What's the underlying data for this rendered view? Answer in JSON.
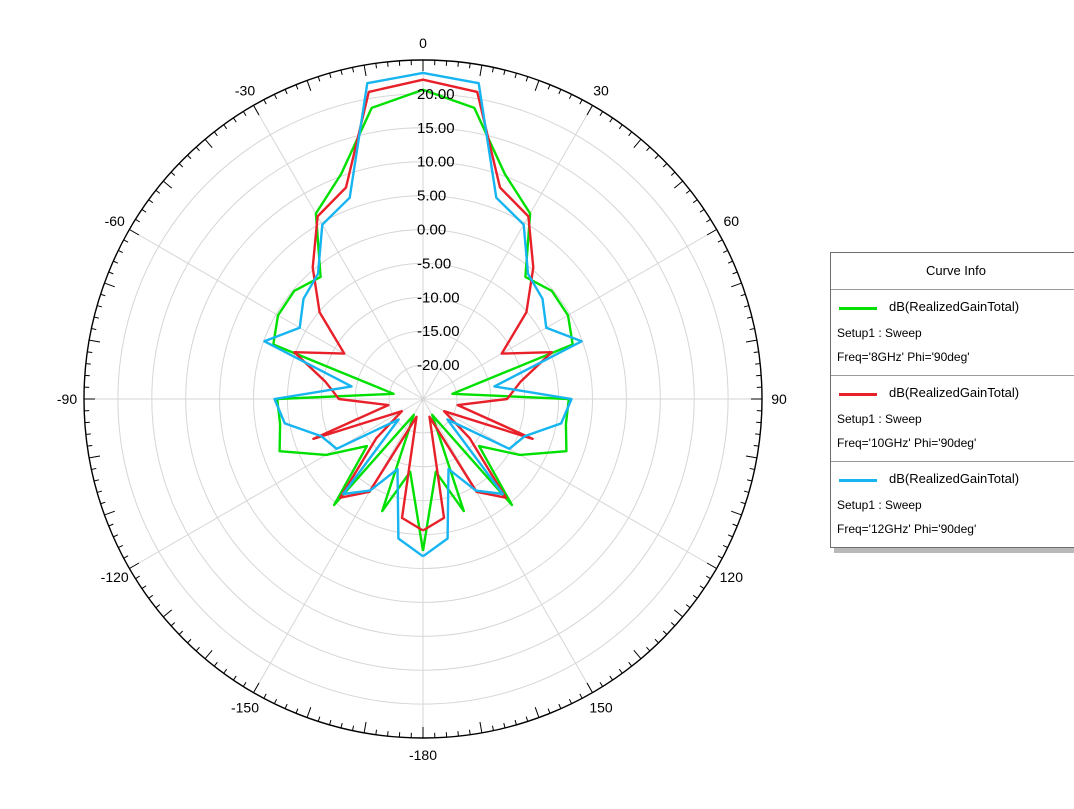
{
  "chart_data": {
    "type": "polar-line",
    "title": "",
    "radial_unit": "dB",
    "r_range": [
      -25,
      25
    ],
    "r_ticks": [
      "-20.00",
      "-15.00",
      "-10.00",
      "-5.00",
      "0.00",
      "5.00",
      "10.00",
      "15.00",
      "20.00"
    ],
    "r_tick_values": [
      -20,
      -15,
      -10,
      -5,
      0,
      5,
      10,
      15,
      20
    ],
    "angle_ticks": [
      {
        "value": 0,
        "label": "0"
      },
      {
        "value": 30,
        "label": "30"
      },
      {
        "value": 60,
        "label": "60"
      },
      {
        "value": 90,
        "label": "90"
      },
      {
        "value": 120,
        "label": "120"
      },
      {
        "value": 150,
        "label": "150"
      },
      {
        "value": 180,
        "label": "-180"
      },
      {
        "value": -150,
        "label": "-150"
      },
      {
        "value": -120,
        "label": "-120"
      },
      {
        "value": -90,
        "label": "-90"
      },
      {
        "value": -60,
        "label": "-60"
      },
      {
        "value": -30,
        "label": "-30"
      }
    ],
    "grid": true,
    "legend_position": "right",
    "angles": [
      -180,
      -170,
      -160,
      -150,
      -140,
      -130,
      -120,
      -110,
      -100,
      -90,
      -80,
      -70,
      -60,
      -50,
      -40,
      -30,
      -20,
      -10,
      0,
      10,
      20,
      30,
      40,
      50,
      60,
      70,
      80,
      90,
      100,
      110,
      120,
      130,
      140,
      150,
      160,
      170,
      180
    ],
    "series": [
      {
        "color": "#00e000",
        "values": [
          -2.6,
          -14.1,
          -7.4,
          -22.3,
          -4.6,
          -14.2,
          -8.5,
          -2.5,
          -3.6,
          -3.5,
          -20.6,
          -1.5,
          -0.3,
          -0.2,
          -1.5,
          6.6,
          10.3,
          18.6,
          20.6,
          18.6,
          10.3,
          6.6,
          -1.5,
          -0.2,
          -0.3,
          -1.5,
          -20.6,
          -3.5,
          -3.6,
          -2.5,
          -8.5,
          -14.2,
          -4.6,
          -22.3,
          -7.4,
          -14.1,
          -2.6
        ]
      },
      {
        "color": "#e8202a",
        "values": [
          -5.6,
          -7.2,
          -22.2,
          -9.2,
          -6.0,
          -16.0,
          -21.4,
          -7.8,
          -19.8,
          -12.6,
          -10.4,
          -4.8,
          -11.6,
          -5.1,
          0.3,
          6.1,
          8.2,
          21.0,
          22.1,
          21.0,
          8.2,
          6.1,
          0.3,
          -5.1,
          -11.6,
          -4.8,
          -10.4,
          -12.6,
          -19.8,
          -7.8,
          -21.4,
          -16.0,
          -6.0,
          -9.2,
          -22.2,
          -7.2,
          -5.6
        ]
      },
      {
        "color": "#16b4f0",
        "values": [
          -1.8,
          -4.1,
          -14.0,
          -9.4,
          -6.7,
          -20.3,
          -10.3,
          -9.0,
          -4.3,
          -3.1,
          -14.3,
          -0.1,
          -4.0,
          -2.0,
          -0.9,
          4.7,
          6.6,
          22.3,
          23.1,
          22.3,
          6.6,
          4.7,
          -0.9,
          -2.0,
          -4.0,
          -0.1,
          -14.3,
          -3.1,
          -4.3,
          -9.0,
          -10.3,
          -20.3,
          -6.7,
          -9.4,
          -14.0,
          -4.1,
          -1.8
        ]
      }
    ]
  },
  "legend": {
    "title": "Curve Info",
    "entries": [
      {
        "name": "dB(RealizedGainTotal)",
        "setup": "Setup1 : Sweep",
        "params": "Freq='8GHz' Phi='90deg'",
        "color": "#00e000"
      },
      {
        "name": "dB(RealizedGainTotal)",
        "setup": "Setup1 : Sweep",
        "params": "Freq='10GHz' Phi='90deg'",
        "color": "#e8202a"
      },
      {
        "name": "dB(RealizedGainTotal)",
        "setup": "Setup1 : Sweep",
        "params": "Freq='12GHz' Phi='90deg'",
        "color": "#16b4f0"
      }
    ]
  }
}
